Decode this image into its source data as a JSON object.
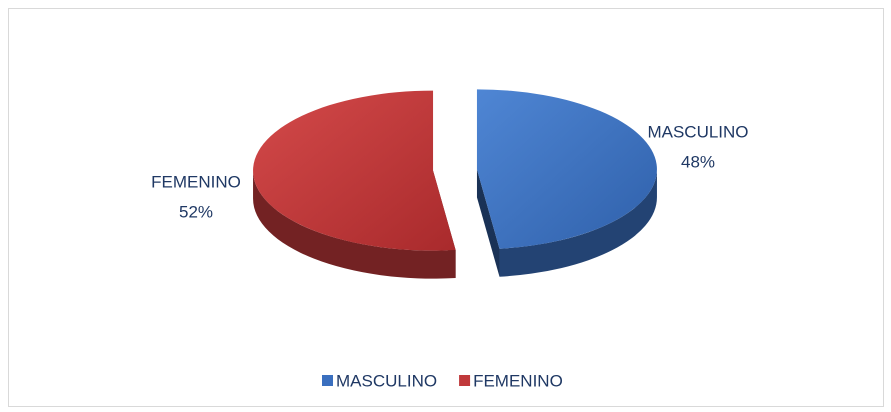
{
  "chart_data": {
    "type": "pie",
    "categories": [
      "MASCULINO",
      "FEMENINO"
    ],
    "values": [
      48,
      52
    ],
    "value_labels": [
      "48%",
      "52%"
    ],
    "colors": [
      "#3a6fbf",
      "#c0393b"
    ],
    "legend": "bottom"
  }
}
